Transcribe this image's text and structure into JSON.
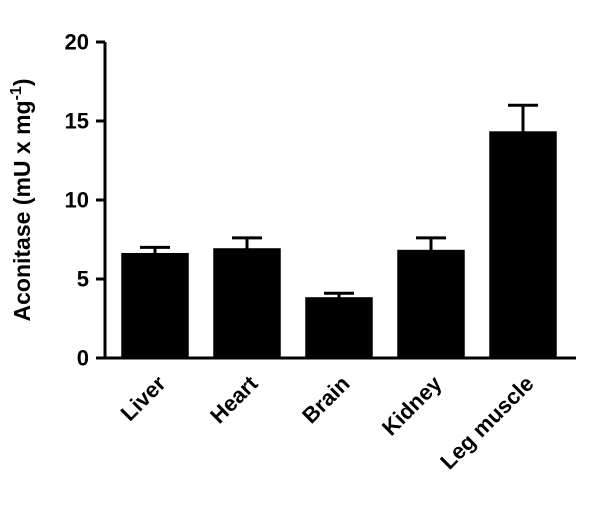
{
  "figure": {
    "background": "#ffffff"
  },
  "chart_data": {
    "type": "bar",
    "categories": [
      "Liver",
      "Heart",
      "Brain",
      "Kidney",
      "Leg muscle"
    ],
    "values": [
      6.6,
      6.9,
      3.8,
      6.8,
      14.3
    ],
    "errors_plus": [
      0.4,
      0.7,
      0.3,
      0.8,
      1.7
    ],
    "title": "",
    "xlabel": "",
    "ylabel": "Aconitase (mU x mg⁻¹)",
    "ylabel_parts": {
      "base": "Aconitase (mU x mg",
      "superscript": "-1",
      "close": ")"
    },
    "ylim": [
      0,
      20
    ],
    "yticks": [
      0,
      5,
      10,
      15,
      20
    ],
    "bar_color": "#000000",
    "axis_color": "#000000",
    "error_bars": "upper",
    "grid": false,
    "legend": false,
    "x_tick_label_rotation_deg": -45
  }
}
